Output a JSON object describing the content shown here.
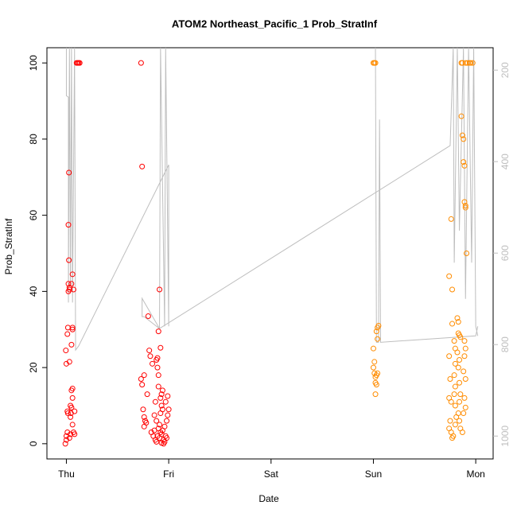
{
  "chart_data": {
    "type": "scatter",
    "title": "ATOM2 Northeast_Pacific_1 Prob_StratInf",
    "x_label": "Date",
    "y_label": "Prob_StratInf",
    "xlim": [
      -0.19,
      4.17
    ],
    "xticks": [
      {
        "value": 0,
        "label": "Thu"
      },
      {
        "value": 1,
        "label": "Fri"
      },
      {
        "value": 2,
        "label": "Sat"
      },
      {
        "value": 3,
        "label": "Sun"
      },
      {
        "value": 4,
        "label": "Mon"
      }
    ],
    "ylim": [
      -4,
      104
    ],
    "yticks": [
      0,
      20,
      40,
      60,
      80,
      100
    ],
    "y2lim": [
      151,
      1050
    ],
    "y2_inverted": true,
    "y2ticks": [
      200,
      400,
      600,
      800,
      1000
    ],
    "y2_color": "#bebebe",
    "series": [
      {
        "type": "scatter",
        "color": "#ff0000",
        "x": [
          -0.01,
          0,
          0,
          0.01,
          -0.005,
          0,
          0.01,
          0.015,
          0.01,
          0.015,
          0.02,
          0.02,
          0.03,
          0.03,
          0.025,
          0.02,
          0.025,
          0.03,
          0.03,
          0.04,
          0.04,
          0.045,
          0.04,
          0.05,
          0.05,
          0.06,
          0.06,
          0.05,
          0.06,
          0.06,
          0.06,
          0.05,
          0.07,
          0.08,
          0.07,
          0.08,
          0.06,
          0.1,
          0.11,
          0.12,
          0.13,
          0.73,
          0.74,
          0.73,
          0.74,
          0.76,
          0.75,
          0.76,
          0.77,
          0.78,
          0.79,
          0.76,
          0.8,
          0.81,
          0.82,
          0.84,
          0.83,
          0.85,
          0.86,
          0.87,
          0.88,
          0.89,
          0.9,
          0.88,
          0.89,
          0.89,
          0.9,
          0.91,
          0.92,
          0.9,
          0.92,
          0.93,
          0.94,
          0.93,
          0.94,
          0.92,
          0.91,
          0.9,
          0.92,
          0.93,
          0.94,
          0.95,
          0.96,
          0.95,
          0.97,
          0.98,
          0.96,
          0.98,
          0.99,
          1.0,
          0.97,
          0.99,
          0.88,
          0.87,
          0.86,
          0.91,
          0.93
        ],
        "values": [
          0,
          1,
          2,
          3,
          24.5,
          21,
          8.5,
          8,
          28.8,
          30.5,
          40,
          42,
          41,
          40.5,
          48.2,
          57.5,
          71.2,
          21.5,
          1.5,
          2.5,
          7,
          8,
          10,
          9.5,
          14,
          14.5,
          12,
          26,
          30,
          30.5,
          44.5,
          42,
          40.5,
          8.5,
          3,
          2.5,
          5,
          100,
          100,
          100,
          100,
          100,
          72.8,
          17,
          15.5,
          18,
          9,
          7,
          6,
          5.5,
          13,
          4.5,
          33.5,
          24.5,
          23,
          21,
          3,
          2,
          3.5,
          1,
          0.5,
          2,
          29.5,
          22,
          22.5,
          20,
          18,
          40.5,
          25.2,
          15,
          12,
          13,
          14,
          10,
          9,
          8,
          5,
          4,
          3,
          2.5,
          3.5,
          1,
          0.5,
          0,
          2,
          1.5,
          4.5,
          6,
          7.5,
          9,
          11,
          12.5,
          6,
          11,
          7.5,
          1.5,
          0.2
        ]
      },
      {
        "type": "scatter",
        "color": "#ff8c00",
        "x": [
          3.0,
          3.01,
          3.02,
          3.0,
          3.01,
          3.0,
          3.01,
          3.02,
          3.02,
          3.03,
          3.02,
          3.03,
          3.04,
          3.04,
          3.03,
          3.04,
          3.05,
          3.74,
          3.76,
          3.77,
          3.77,
          3.74,
          3.75,
          3.74,
          3.76,
          3.75,
          3.74,
          3.76,
          3.77,
          3.78,
          3.79,
          3.8,
          3.8,
          3.79,
          3.8,
          3.79,
          3.8,
          3.81,
          3.8,
          3.82,
          3.83,
          3.83,
          3.84,
          3.82,
          3.84,
          3.83,
          3.84,
          3.85,
          3.84,
          3.83,
          3.84,
          3.85,
          3.86,
          3.87,
          3.88,
          3.88,
          3.89,
          3.89,
          3.9,
          3.9,
          3.91,
          3.89,
          3.9,
          3.89,
          3.88,
          3.9,
          3.89,
          3.9,
          3.88,
          3.87,
          3.86,
          3.87,
          3.9,
          3.92,
          3.94,
          3.95,
          3.97,
          3.85
        ],
        "values": [
          100,
          100,
          100,
          25,
          21.5,
          20,
          18.5,
          17.5,
          16,
          15.5,
          13,
          18,
          18.5,
          27.5,
          29.5,
          30.5,
          31,
          44,
          59,
          40.5,
          31.5,
          23,
          17,
          12,
          11,
          6,
          4,
          3,
          1.5,
          2,
          27,
          25,
          21,
          18,
          15,
          13,
          10,
          7,
          5,
          33,
          32,
          29,
          28.5,
          24,
          22,
          20,
          16,
          13,
          11,
          8,
          6,
          4,
          86,
          81,
          80,
          74,
          73,
          63.5,
          62.5,
          62,
          50,
          27,
          25,
          23,
          19,
          17,
          12,
          9.5,
          8,
          3,
          100,
          100,
          100,
          100,
          100,
          100,
          100,
          28
        ]
      },
      {
        "type": "line",
        "axis": "y2",
        "color": "#bebebe",
        "x": [
          0.0,
          0.0,
          0.02,
          0.02,
          0.03,
          0.04,
          0.05,
          0.06,
          0.08,
          0.09,
          0.12,
          1.0,
          1.0,
          0.97,
          0.96,
          0.92,
          0.91,
          0.76,
          0.74,
          0.74,
          0.91,
          3.75,
          3.78,
          3.79,
          3.82,
          3.84,
          3.88,
          3.9,
          3.93,
          3.96,
          3.98,
          4.0,
          4.02,
          null,
          3.02,
          3.03,
          3.05,
          3.06,
          3.07,
          4.0,
          4.02
        ],
        "values": [
          151,
          256,
          259,
          708,
          151,
          673,
          151,
          708,
          151,
          812,
          803,
          407,
          760,
          151,
          760,
          151,
          765,
          739,
          739,
          699,
          765,
          365,
          151,
          621,
          151,
          551,
          151,
          700,
          151,
          621,
          151,
          760,
          781,
          null,
          151,
          795,
          795,
          308,
          795,
          781,
          760
        ]
      }
    ]
  }
}
